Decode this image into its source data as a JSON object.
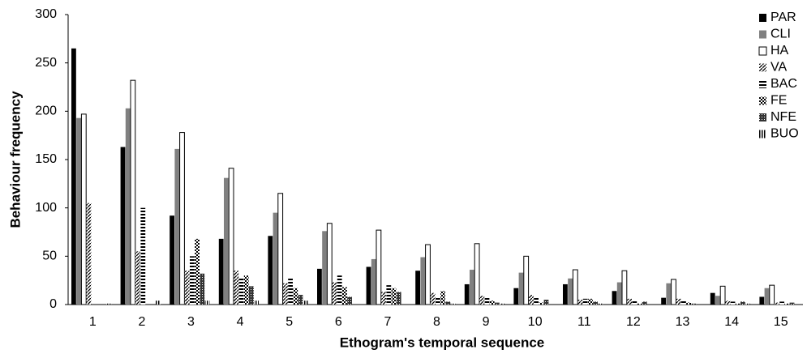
{
  "chart_data": {
    "type": "bar",
    "x_label": "Ethogram's temporal sequence",
    "y_label": "Behaviour frequency",
    "categories": [
      "1",
      "2",
      "3",
      "4",
      "5",
      "6",
      "7",
      "8",
      "9",
      "10",
      "11",
      "12",
      "13",
      "14",
      "15"
    ],
    "series": [
      {
        "name": "PAR",
        "color": "#000000",
        "pattern": "solid",
        "values": [
          265,
          163,
          92,
          68,
          71,
          37,
          39,
          35,
          21,
          17,
          21,
          14,
          7,
          12,
          8
        ]
      },
      {
        "name": "CLI",
        "color": "#808080",
        "pattern": "solid",
        "values": [
          193,
          203,
          161,
          131,
          95,
          76,
          47,
          49,
          36,
          33,
          27,
          23,
          22,
          9,
          17
        ]
      },
      {
        "name": "HA",
        "color": "#ffffff",
        "pattern": "solid",
        "values": [
          197,
          232,
          178,
          141,
          115,
          84,
          77,
          62,
          63,
          50,
          36,
          35,
          26,
          19,
          20
        ]
      },
      {
        "name": "VA",
        "color": "#000000",
        "pattern": "diagonal",
        "values": [
          105,
          55,
          35,
          35,
          22,
          23,
          13,
          12,
          9,
          10,
          5,
          6,
          6,
          4,
          2
        ]
      },
      {
        "name": "BAC",
        "color": "#000000",
        "pattern": "horizontal",
        "values": [
          0,
          100,
          50,
          28,
          27,
          30,
          20,
          7,
          8,
          8,
          6,
          5,
          5,
          3,
          3
        ]
      },
      {
        "name": "FE",
        "color": "#000000",
        "pattern": "checker",
        "values": [
          0,
          0,
          68,
          30,
          17,
          18,
          17,
          14,
          4,
          2,
          6,
          1,
          2,
          1,
          1
        ]
      },
      {
        "name": "NFE",
        "color": "#000000",
        "pattern": "crosshatch",
        "values": [
          0,
          0,
          32,
          19,
          10,
          8,
          13,
          3,
          2,
          5,
          3,
          3,
          1,
          3,
          2
        ]
      },
      {
        "name": "BUO",
        "color": "#000000",
        "pattern": "vertical",
        "values": [
          1,
          4,
          4,
          4,
          4,
          0,
          0,
          1,
          1,
          0,
          1,
          0,
          0,
          1,
          0
        ]
      }
    ],
    "ylim": [
      0,
      300
    ],
    "yticks": [
      0,
      50,
      100,
      150,
      200,
      250,
      300
    ],
    "grid": false,
    "legend": "top-right"
  }
}
